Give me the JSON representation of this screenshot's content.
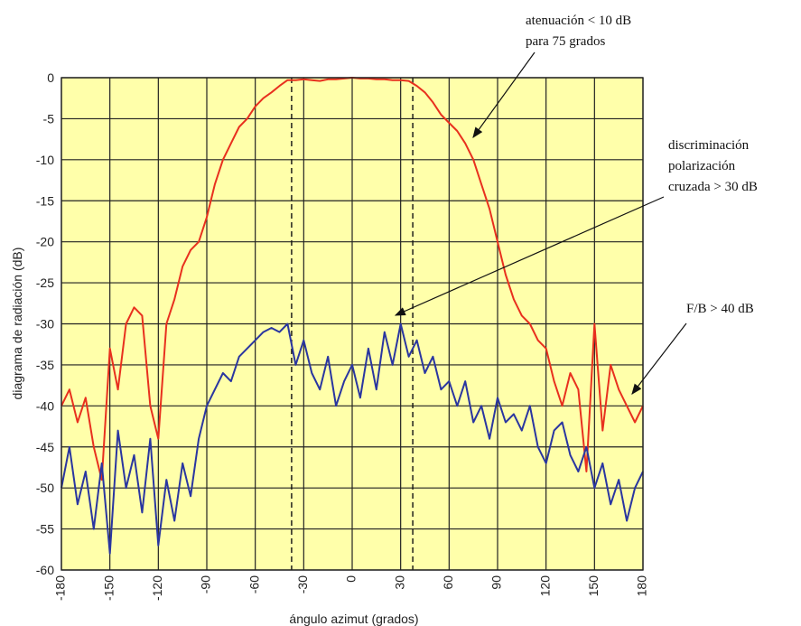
{
  "chart_data": {
    "type": "line",
    "xlabel": "ángulo azimut (grados)",
    "ylabel": "diagrama de radiación (dB)",
    "xlim": [
      -180,
      180
    ],
    "ylim": [
      -60,
      0
    ],
    "x_ticks": [
      -180,
      -150,
      -120,
      -90,
      -60,
      -30,
      0,
      30,
      60,
      90,
      120,
      150,
      180
    ],
    "y_ticks": [
      0,
      -5,
      -10,
      -15,
      -20,
      -25,
      -30,
      -35,
      -40,
      -45,
      -50,
      -55,
      -60
    ],
    "x_tick_labels": [
      "-180",
      "-150",
      "-120",
      "-90",
      "-60",
      "-30",
      "0",
      "30",
      "60",
      "90",
      "120",
      "150",
      "180"
    ],
    "y_tick_labels": [
      "0",
      "-5",
      "-10",
      "-15",
      "-20",
      "-25",
      "-30",
      "-35",
      "-40",
      "-45",
      "-50",
      "-55",
      "-60"
    ],
    "grid": true,
    "plot_background": "#FFFFAA",
    "vertical_markers": [
      -37.5,
      37.5
    ],
    "series": [
      {
        "color": "#E8301E",
        "x": [
          -180,
          -175,
          -170,
          -165,
          -160,
          -155,
          -150,
          -145,
          -140,
          -135,
          -130,
          -125,
          -120,
          -115,
          -110,
          -105,
          -100,
          -95,
          -90,
          -85,
          -80,
          -75,
          -70,
          -65,
          -60,
          -55,
          -50,
          -45,
          -40,
          -35,
          -30,
          -25,
          -20,
          -15,
          -10,
          -5,
          0,
          5,
          10,
          15,
          20,
          25,
          30,
          35,
          40,
          45,
          50,
          55,
          60,
          65,
          70,
          75,
          80,
          85,
          90,
          95,
          100,
          105,
          110,
          115,
          120,
          125,
          130,
          135,
          140,
          145,
          150,
          155,
          160,
          165,
          170,
          175,
          180
        ],
        "values": [
          -40,
          -38,
          -42,
          -39,
          -45,
          -49,
          -33,
          -38,
          -30,
          -28,
          -29,
          -40,
          -44,
          -30,
          -27,
          -23,
          -21,
          -20,
          -17,
          -13,
          -10,
          -8,
          -6,
          -5,
          -3.5,
          -2.5,
          -1.8,
          -1,
          -0.3,
          -0.3,
          -0.2,
          -0.3,
          -0.4,
          -0.2,
          -0.2,
          -0.1,
          0,
          -0.1,
          -0.1,
          -0.2,
          -0.2,
          -0.3,
          -0.3,
          -0.4,
          -1,
          -1.8,
          -3,
          -4.5,
          -5.5,
          -6.5,
          -8,
          -10,
          -13,
          -16,
          -20,
          -24,
          -27,
          -29,
          -30,
          -32,
          -33,
          -37,
          -40,
          -36,
          -38,
          -48,
          -30,
          -43,
          -35,
          -38,
          -40,
          -42,
          -40
        ]
      },
      {
        "color": "#2A36A0",
        "x": [
          -180,
          -175,
          -170,
          -165,
          -160,
          -155,
          -150,
          -145,
          -140,
          -135,
          -130,
          -125,
          -120,
          -115,
          -110,
          -105,
          -100,
          -95,
          -90,
          -85,
          -80,
          -75,
          -70,
          -65,
          -60,
          -55,
          -50,
          -45,
          -40,
          -35,
          -30,
          -25,
          -20,
          -15,
          -10,
          -5,
          0,
          5,
          10,
          15,
          20,
          25,
          30,
          35,
          40,
          45,
          50,
          55,
          60,
          65,
          70,
          75,
          80,
          85,
          90,
          95,
          100,
          105,
          110,
          115,
          120,
          125,
          130,
          135,
          140,
          145,
          150,
          155,
          160,
          165,
          170,
          175,
          180
        ],
        "values": [
          -50,
          -45,
          -52,
          -48,
          -55,
          -47,
          -58,
          -43,
          -50,
          -46,
          -53,
          -44,
          -57,
          -49,
          -54,
          -47,
          -51,
          -44,
          -40,
          -38,
          -36,
          -37,
          -34,
          -33,
          -32,
          -31,
          -30.5,
          -31,
          -30,
          -35,
          -32,
          -36,
          -38,
          -34,
          -40,
          -37,
          -35,
          -39,
          -33,
          -38,
          -31,
          -35,
          -30,
          -34,
          -32,
          -36,
          -34,
          -38,
          -37,
          -40,
          -37,
          -42,
          -40,
          -44,
          -39,
          -42,
          -41,
          -43,
          -40,
          -45,
          -47,
          -43,
          -42,
          -46,
          -48,
          -45,
          -50,
          -47,
          -52,
          -49,
          -54,
          -50,
          -48
        ]
      }
    ],
    "annotations": [
      {
        "lines": [
          "atenuación < 10 dB",
          "para 75 grados"
        ]
      },
      {
        "lines": [
          "discriminación",
          "polarización",
          "cruzada > 30 dB"
        ]
      },
      {
        "lines": [
          "F/B > 40 dB"
        ]
      }
    ]
  }
}
